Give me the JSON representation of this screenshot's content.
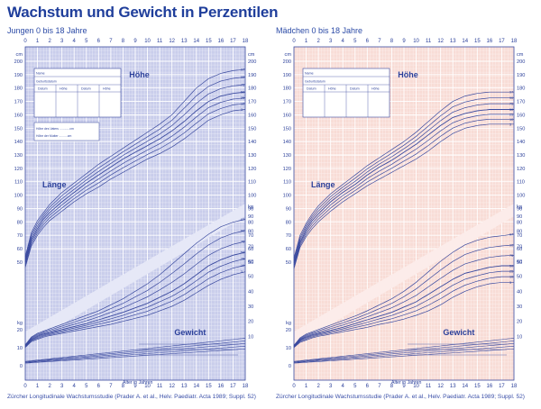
{
  "page_title": "Wachstum und Gewicht in Perzentilen",
  "colors": {
    "accent": "#2a3f9a",
    "boys_bg": "#c9cdeb",
    "girls_bg": "#f8dcd6",
    "curve": "#3a4a9f",
    "grid": "#ffffff"
  },
  "chart_data": [
    {
      "type": "line",
      "panel": "boys",
      "subtitle": "Jungen 0 bis 18 Jahre",
      "xlabel": "Alter in Jahren",
      "x_ticks": [
        "0",
        "1",
        "2",
        "3",
        "4",
        "5",
        "6",
        "7",
        "8",
        "9",
        "10",
        "11",
        "12",
        "13",
        "14",
        "15",
        "16",
        "17",
        "18"
      ],
      "xlim": [
        0,
        18
      ],
      "cm_ticks": [
        "200",
        "190",
        "180",
        "170",
        "160",
        "150",
        "140",
        "130",
        "120",
        "110",
        "100",
        "90",
        "80",
        "70",
        "60",
        "50"
      ],
      "cm_unit": "cm",
      "kg_ticks": [
        "90",
        "80",
        "70",
        "60",
        "50",
        "40",
        "30",
        "20",
        "10"
      ],
      "kg_unit": "kg",
      "kg_lower_ticks": [
        "20",
        "10",
        "0"
      ],
      "kg_lower_unit": "kg",
      "labels": {
        "height": "Höhe",
        "length": "Länge",
        "weight": "Gewicht"
      },
      "height_percentile_labels": [
        "97",
        "90",
        "75",
        "50",
        "25",
        "10",
        "3"
      ],
      "weight_percentile_labels": [
        "97",
        "90",
        "75",
        "50",
        "25",
        "10",
        "3"
      ],
      "x": [
        0,
        0.5,
        1,
        1.5,
        2,
        3,
        4,
        5,
        6,
        7,
        8,
        9,
        10,
        11,
        12,
        13,
        14,
        15,
        16,
        17,
        18
      ],
      "height_series": [
        {
          "name": "97",
          "values": [
            54,
            72,
            81,
            87,
            93,
            102,
            109,
            116,
            123,
            129,
            135,
            141,
            147,
            153,
            160,
            170,
            180,
            187,
            191,
            193,
            194
          ]
        },
        {
          "name": "50",
          "values": [
            50,
            67,
            75,
            82,
            87,
            95,
            102,
            109,
            115,
            121,
            127,
            132,
            137,
            142,
            148,
            155,
            163,
            170,
            174,
            176,
            177
          ]
        },
        {
          "name": "3",
          "values": [
            46,
            62,
            70,
            76,
            81,
            88,
            95,
            101,
            106,
            112,
            117,
            122,
            127,
            131,
            136,
            142,
            149,
            156,
            160,
            163,
            164
          ]
        }
      ],
      "weight_series": [
        {
          "name": "97",
          "values": [
            4.3,
            9.5,
            12,
            13.5,
            15,
            18,
            21,
            24,
            27,
            31,
            35,
            40,
            45,
            51,
            58,
            65,
            72,
            78,
            83,
            86,
            88
          ]
        },
        {
          "name": "50",
          "values": [
            3.4,
            8,
            10,
            11.5,
            12.5,
            14.5,
            16.5,
            18.5,
            21,
            23.5,
            26,
            29,
            32,
            36,
            40,
            45,
            51,
            57,
            61,
            64,
            66
          ]
        },
        {
          "name": "3",
          "values": [
            2.6,
            6.5,
            8,
            9.5,
            10.5,
            12,
            13.5,
            15,
            16.5,
            18,
            20,
            22,
            24,
            27,
            30,
            34,
            39,
            44,
            48,
            51,
            53
          ]
        }
      ],
      "form_labels": {
        "row1": "Name",
        "row2": "Geburtsdatum",
        "cols": [
          "Datum",
          "Höhe",
          "Datum",
          "Höhe"
        ],
        "parent1": "Höhe des Vaters ............cm",
        "parent2": "Höhe der Mutter ..........cm"
      },
      "footer": "Zürcher Longitudinale Wachstumsstudie (Prader A. et al., Helv. Paediatr. Acta 1989; Suppl. 52)"
    },
    {
      "type": "line",
      "panel": "girls",
      "subtitle": "Mädchen 0 bis 18 Jahre",
      "xlabel": "Alter in Jahren",
      "x_ticks": [
        "0",
        "1",
        "2",
        "3",
        "4",
        "5",
        "6",
        "7",
        "8",
        "9",
        "10",
        "11",
        "12",
        "13",
        "14",
        "15",
        "16",
        "17",
        "18"
      ],
      "xlim": [
        0,
        18
      ],
      "cm_ticks": [
        "200",
        "190",
        "180",
        "170",
        "160",
        "150",
        "140",
        "130",
        "120",
        "110",
        "100",
        "90",
        "80",
        "70",
        "60",
        "50"
      ],
      "cm_unit": "cm",
      "kg_ticks": [
        "90",
        "80",
        "70",
        "60",
        "50",
        "40",
        "30",
        "20",
        "10"
      ],
      "kg_unit": "kg",
      "kg_lower_ticks": [
        "20",
        "10",
        "0"
      ],
      "kg_lower_unit": "kg",
      "labels": {
        "height": "Höhe",
        "length": "Länge",
        "weight": "Gewicht"
      },
      "height_percentile_labels": [
        "97",
        "90",
        "75",
        "50",
        "25",
        "10",
        "3"
      ],
      "weight_percentile_labels": [
        "97",
        "90",
        "75",
        "50",
        "25",
        "10",
        "3"
      ],
      "x": [
        0,
        0.5,
        1,
        1.5,
        2,
        3,
        4,
        5,
        6,
        7,
        8,
        9,
        10,
        11,
        12,
        13,
        14,
        15,
        16,
        17,
        18
      ],
      "height_series": [
        {
          "name": "97",
          "values": [
            53,
            70,
            79,
            86,
            92,
            101,
            108,
            115,
            122,
            128,
            134,
            140,
            147,
            155,
            163,
            170,
            174,
            176,
            177,
            177,
            177
          ]
        },
        {
          "name": "50",
          "values": [
            49,
            65,
            74,
            81,
            86,
            95,
            102,
            108,
            115,
            121,
            126,
            132,
            138,
            145,
            152,
            158,
            161,
            163,
            164,
            164,
            164
          ]
        },
        {
          "name": "3",
          "values": [
            45,
            61,
            69,
            75,
            80,
            88,
            95,
            101,
            107,
            112,
            117,
            122,
            127,
            133,
            140,
            146,
            150,
            152,
            153,
            153,
            153
          ]
        }
      ],
      "weight_series": [
        {
          "name": "97",
          "values": [
            4,
            9,
            11.5,
            13,
            14.5,
            17.5,
            20.5,
            23.5,
            27,
            31,
            35,
            40,
            46,
            53,
            60,
            66,
            71,
            74,
            76,
            77,
            78
          ]
        },
        {
          "name": "50",
          "values": [
            3.3,
            7.5,
            9.5,
            11,
            12,
            14,
            16,
            18.5,
            21,
            23.5,
            26,
            29.5,
            33,
            38,
            43,
            48,
            52,
            54,
            56,
            57,
            57
          ]
        },
        {
          "name": "3",
          "values": [
            2.5,
            6,
            7.5,
            9,
            10,
            11.5,
            13,
            14.5,
            16,
            18,
            19.5,
            21.5,
            24,
            27,
            31,
            36,
            40,
            43,
            45,
            46,
            46
          ]
        }
      ],
      "form_labels": {
        "row1": "Name",
        "row2": "Geburtsdatum",
        "cols": [
          "Datum",
          "Höhe",
          "Datum",
          "Höhe"
        ],
        "parent1": "",
        "parent2": ""
      },
      "footer": "Zürcher Longitudinale Wachstumsstudie (Prader A. et al., Helv. Paediatr. Acta 1989; Suppl. 52)"
    }
  ]
}
